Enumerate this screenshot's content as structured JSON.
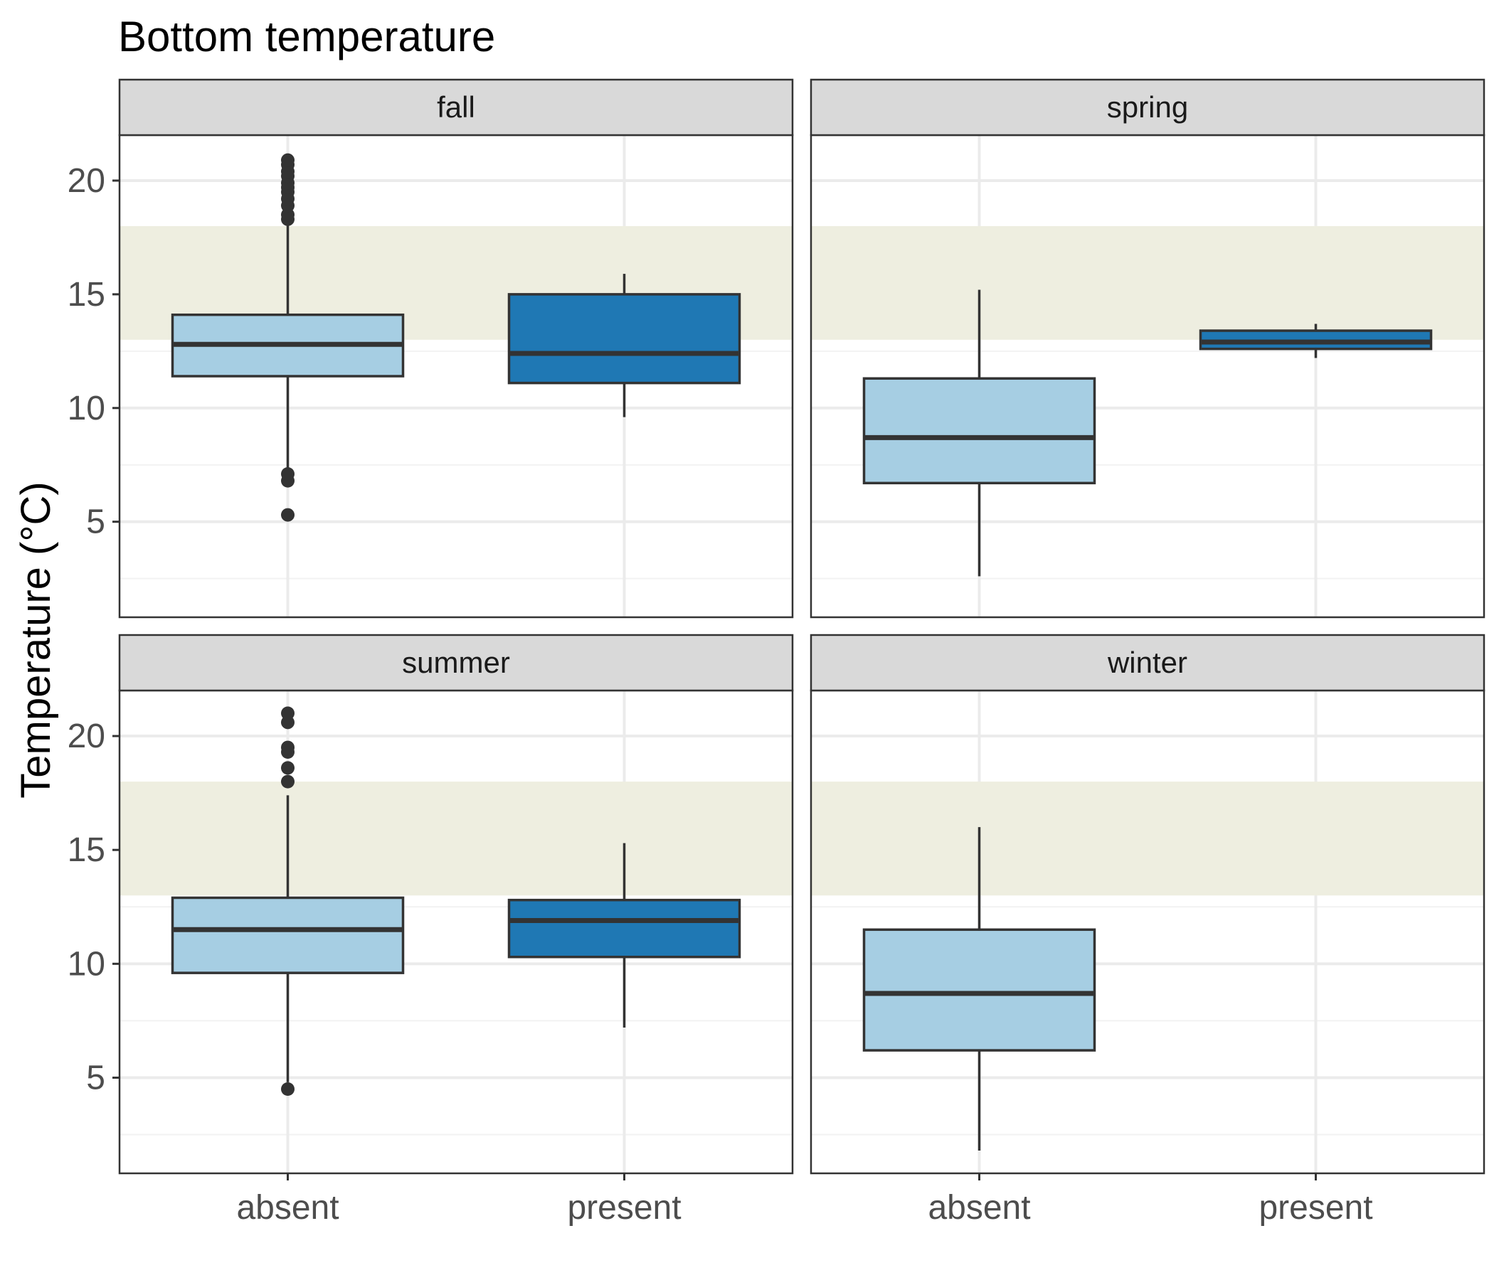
{
  "chart_data": {
    "type": "boxplot",
    "title": "Bottom temperature",
    "xlabel": "",
    "ylabel": "Temperature (°C)",
    "categories": [
      "absent",
      "present"
    ],
    "y_ticks": [
      5,
      10,
      15,
      20
    ],
    "ylim": [
      0.8,
      22
    ],
    "shaded_band": {
      "ymin": 13,
      "ymax": 18,
      "color": "#eeeee0"
    },
    "grid": true,
    "colors": {
      "absent": "#a6cee3",
      "present": "#1f78b4",
      "outline": "#333333",
      "strip": "#d9d9d9"
    },
    "panels": [
      {
        "label": "fall",
        "boxes": [
          {
            "category": "absent",
            "lower_whisker": 7.1,
            "q1": 11.4,
            "median": 12.8,
            "q3": 14.1,
            "upper_whisker": 18.1,
            "outliers": [
              5.3,
              6.8,
              7.1,
              18.3,
              18.5,
              18.9,
              19.2,
              19.5,
              19.7,
              19.9,
              20.2,
              20.4,
              20.7,
              20.9
            ]
          },
          {
            "category": "present",
            "lower_whisker": 9.6,
            "q1": 11.1,
            "median": 12.4,
            "q3": 15.0,
            "upper_whisker": 15.9,
            "outliers": []
          }
        ]
      },
      {
        "label": "spring",
        "boxes": [
          {
            "category": "absent",
            "lower_whisker": 2.6,
            "q1": 6.7,
            "median": 8.7,
            "q3": 11.3,
            "upper_whisker": 15.2,
            "outliers": []
          },
          {
            "category": "present",
            "lower_whisker": 12.2,
            "q1": 12.6,
            "median": 12.9,
            "q3": 13.4,
            "upper_whisker": 13.7,
            "outliers": []
          }
        ]
      },
      {
        "label": "summer",
        "boxes": [
          {
            "category": "absent",
            "lower_whisker": 4.8,
            "q1": 9.6,
            "median": 11.5,
            "q3": 12.9,
            "upper_whisker": 17.4,
            "outliers": [
              4.5,
              18.0,
              18.6,
              19.3,
              19.5,
              20.6,
              21.0
            ]
          },
          {
            "category": "present",
            "lower_whisker": 7.2,
            "q1": 10.3,
            "median": 11.9,
            "q3": 12.8,
            "upper_whisker": 15.3,
            "outliers": []
          }
        ]
      },
      {
        "label": "winter",
        "boxes": [
          {
            "category": "absent",
            "lower_whisker": 1.8,
            "q1": 6.2,
            "median": 8.7,
            "q3": 11.5,
            "upper_whisker": 16.0,
            "outliers": []
          }
        ]
      }
    ]
  }
}
